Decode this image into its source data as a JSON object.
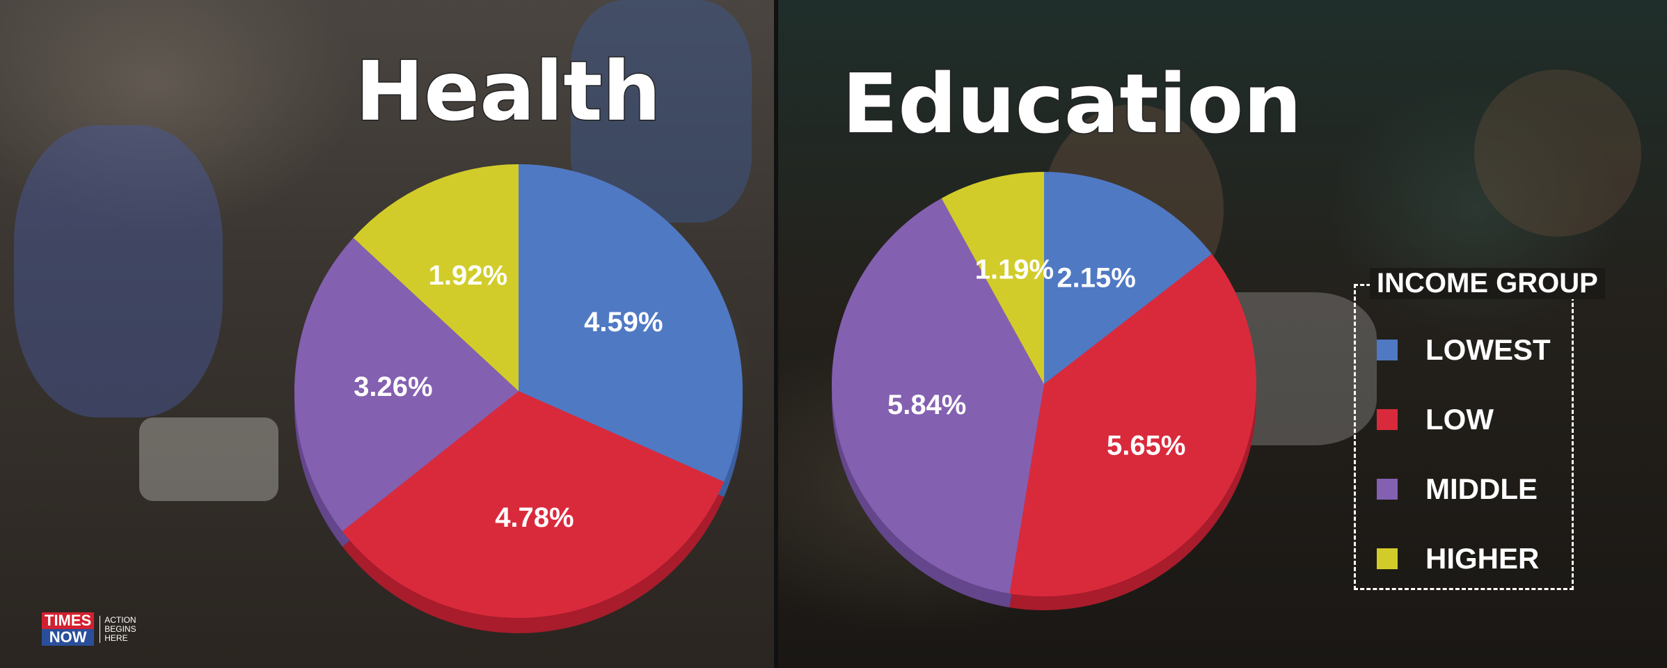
{
  "chart_data": [
    {
      "type": "pie",
      "title": "Health",
      "categories": [
        "LOWEST",
        "LOW",
        "MIDDLE",
        "HIGHER"
      ],
      "values": [
        4.59,
        4.78,
        3.26,
        1.92
      ],
      "labels": [
        "4.59%",
        "4.78%",
        "3.26%",
        "1.92%"
      ]
    },
    {
      "type": "pie",
      "title": "Education",
      "categories": [
        "LOWEST",
        "LOW",
        "MIDDLE",
        "HIGHER"
      ],
      "values": [
        2.15,
        5.65,
        5.84,
        1.19
      ],
      "labels": [
        "2.15%",
        "5.65%",
        "5.84%",
        "1.19%"
      ]
    }
  ],
  "legend": {
    "title": "INCOME GROUP",
    "items": [
      {
        "label": "LOWEST",
        "color": "#5079c4"
      },
      {
        "label": "LOW",
        "color": "#d92a3c"
      },
      {
        "label": "MIDDLE",
        "color": "#8460b0"
      },
      {
        "label": "HIGHER",
        "color": "#d2cc2a"
      }
    ]
  },
  "colors": {
    "LOWEST": "#5079c4",
    "LOW": "#d92a3c",
    "MIDDLE": "#8460b0",
    "HIGHER": "#d2cc2a",
    "LOWEST_side": "#3c5fa0",
    "LOW_side": "#a81c2c",
    "MIDDLE_side": "#64468c",
    "HIGHER_side": "#a8a21e"
  },
  "logo": {
    "line1": "TIMES",
    "line2": "NOW",
    "tagline": [
      "ACTION",
      "BEGINS",
      "HERE"
    ]
  }
}
